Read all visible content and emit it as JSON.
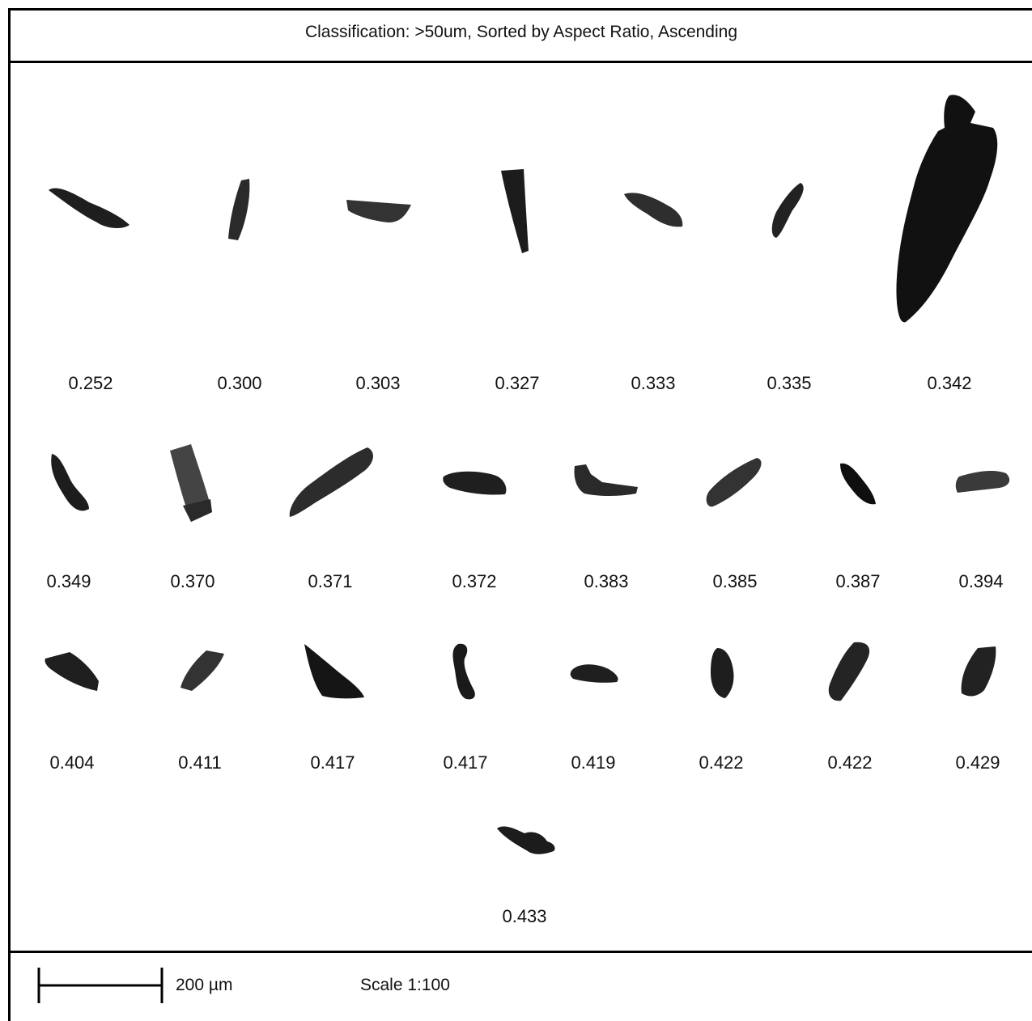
{
  "title": "Classification: >50um, Sorted by Aspect Ratio, Ascending",
  "particles": [
    {
      "value": "0.252"
    },
    {
      "value": "0.300"
    },
    {
      "value": "0.303"
    },
    {
      "value": "0.327"
    },
    {
      "value": "0.333"
    },
    {
      "value": "0.335"
    },
    {
      "value": "0.342"
    },
    {
      "value": "0.349"
    },
    {
      "value": "0.370"
    },
    {
      "value": "0.371"
    },
    {
      "value": "0.372"
    },
    {
      "value": "0.383"
    },
    {
      "value": "0.385"
    },
    {
      "value": "0.387"
    },
    {
      "value": "0.394"
    },
    {
      "value": "0.404"
    },
    {
      "value": "0.411"
    },
    {
      "value": "0.417"
    },
    {
      "value": "0.417"
    },
    {
      "value": "0.419"
    },
    {
      "value": "0.422"
    },
    {
      "value": "0.422"
    },
    {
      "value": "0.429"
    },
    {
      "value": "0.433"
    }
  ],
  "footer": {
    "scale_length": "200 µm",
    "scale_ratio": "Scale 1:100"
  },
  "colors": {
    "particle_dark": "#1a1a1a",
    "particle_mid": "#3a3a3a",
    "particle_light": "#5a5a5a"
  }
}
